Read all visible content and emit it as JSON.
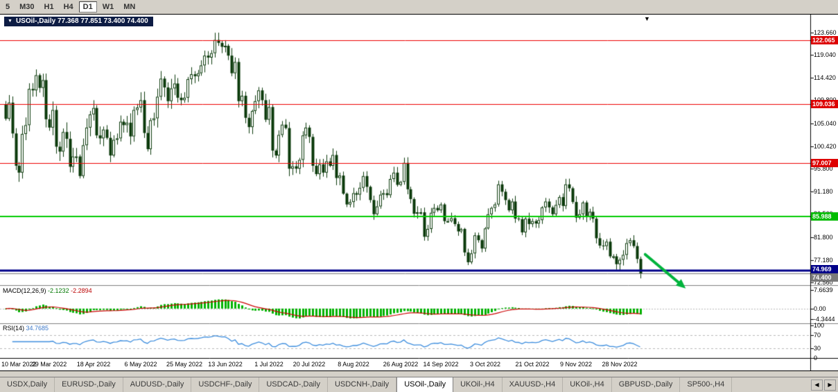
{
  "toolbar": {
    "timeframes": [
      {
        "label": "5",
        "active": false
      },
      {
        "label": "M30",
        "active": false
      },
      {
        "label": "H1",
        "active": false
      },
      {
        "label": "H4",
        "active": false
      },
      {
        "label": "D1",
        "active": true
      },
      {
        "label": "W1",
        "active": false
      },
      {
        "label": "MN",
        "active": false
      }
    ]
  },
  "chart": {
    "title_chip": "USOil-,Daily  77.368 77.851 73.400 74.400",
    "macd_name": "MACD(12,26,9)",
    "macd_main": "-2.1232",
    "macd_signal": "-2.2894",
    "rsi_name": "RSI(14)",
    "rsi_value": "34.7685",
    "price_ticks": [
      {
        "label": "123.660",
        "v": 123.66
      },
      {
        "label": "119.040",
        "v": 119.04
      },
      {
        "label": "114.420",
        "v": 114.42
      },
      {
        "label": "109.800",
        "v": 109.8
      },
      {
        "label": "105.040",
        "v": 105.04
      },
      {
        "label": "100.420",
        "v": 100.42
      },
      {
        "label": "95.800",
        "v": 95.8
      },
      {
        "label": "91.180",
        "v": 91.18
      },
      {
        "label": "86.560",
        "v": 86.56
      },
      {
        "label": "81.800",
        "v": 81.8
      },
      {
        "label": "77.180",
        "v": 77.18
      },
      {
        "label": "72.560",
        "v": 72.56
      }
    ],
    "price_tags": [
      {
        "label": "122.065",
        "v": 122.065,
        "bg": "#dd0000",
        "dy": 0
      },
      {
        "label": "109.036",
        "v": 109.036,
        "bg": "#dd0000",
        "dy": 0
      },
      {
        "label": "97.007",
        "v": 97.007,
        "bg": "#dd0000",
        "dy": 0
      },
      {
        "label": "85.988",
        "v": 85.988,
        "bg": "#00bb00",
        "dy": 0
      },
      {
        "label": "74.969",
        "v": 74.969,
        "bg": "#000089",
        "dy": -2
      },
      {
        "label": "74.400",
        "v": 74.4,
        "bg": "#7a7a7a",
        "dy": 6
      }
    ],
    "macd_ticks": [
      {
        "label": "7.6639",
        "v": 7.6639
      },
      {
        "label": "0.00",
        "v": 0.0
      },
      {
        "label": "-4.3444",
        "v": -4.3444
      }
    ],
    "rsi_ticks": [
      {
        "label": "100",
        "v": 100
      },
      {
        "label": "70",
        "v": 70
      },
      {
        "label": "30",
        "v": 30
      },
      {
        "label": "0",
        "v": 0
      }
    ],
    "date_labels": [
      {
        "label": "10 Mar 2022",
        "i": 0
      },
      {
        "label": "29 Mar 2022",
        "i": 13
      },
      {
        "label": "18 Apr 2022",
        "i": 26
      },
      {
        "label": "6 May 2022",
        "i": 40
      },
      {
        "label": "25 May 2022",
        "i": 53
      },
      {
        "label": "13 Jun 2022",
        "i": 65
      },
      {
        "label": "1 Jul 2022",
        "i": 78
      },
      {
        "label": "20 Jul 2022",
        "i": 90
      },
      {
        "label": "8 Aug 2022",
        "i": 103
      },
      {
        "label": "26 Aug 2022",
        "i": 117
      },
      {
        "label": "14 Sep 2022",
        "i": 129
      },
      {
        "label": "3 Oct 2022",
        "i": 142
      },
      {
        "label": "21 Oct 2022",
        "i": 156
      },
      {
        "label": "9 Nov 2022",
        "i": 169
      },
      {
        "label": "28 Nov 2022",
        "i": 182
      }
    ]
  },
  "chart_data": {
    "type": "candlestick",
    "symbol": "USOil-",
    "timeframe": "Daily",
    "ylim": [
      72.3,
      127.0
    ],
    "ohlc_last": {
      "open": 77.368,
      "high": 77.851,
      "low": 73.4,
      "close": 74.4
    },
    "closes": [
      106.0,
      109.3,
      103.0,
      96.4,
      95.0,
      102.9,
      104.7,
      112.1,
      111.8,
      114.9,
      112.3,
      113.9,
      105.9,
      104.2,
      107.8,
      100.3,
      99.3,
      103.3,
      101.9,
      96.2,
      98.3,
      98.3,
      94.3,
      100.6,
      104.2,
      106.9,
      108.2,
      102.6,
      102.0,
      103.8,
      102.1,
      98.5,
      101.7,
      102.0,
      105.4,
      104.7,
      105.2,
      102.4,
      107.8,
      108.3,
      109.8,
      103.1,
      99.8,
      105.7,
      106.1,
      110.5,
      114.2,
      112.4,
      109.6,
      112.2,
      113.2,
      110.3,
      109.8,
      110.3,
      114.1,
      115.1,
      114.7,
      115.3,
      116.9,
      118.9,
      118.5,
      119.4,
      122.1,
      121.5,
      120.7,
      120.9,
      118.9,
      115.3,
      117.6,
      109.6,
      110.7,
      106.2,
      104.3,
      107.6,
      109.6,
      111.8,
      109.8,
      105.8,
      108.4,
      99.5,
      98.5,
      102.7,
      104.8,
      104.1,
      95.8,
      96.3,
      95.8,
      97.6,
      102.6,
      104.2,
      102.3,
      96.4,
      94.7,
      96.7,
      95.0,
      97.3,
      96.4,
      98.6,
      93.9,
      94.4,
      90.7,
      88.5,
      89.0,
      90.8,
      90.5,
      91.9,
      94.3,
      92.1,
      89.4,
      86.5,
      88.1,
      90.5,
      90.8,
      90.4,
      93.7,
      95.0,
      92.5,
      93.1,
      97.0,
      91.6,
      89.6,
      86.6,
      86.9,
      86.9,
      81.9,
      83.5,
      86.8,
      87.8,
      87.3,
      88.5,
      85.1,
      85.1,
      85.7,
      84.5,
      83.0,
      83.5,
      78.7,
      76.7,
      78.5,
      82.2,
      81.2,
      79.5,
      83.6,
      86.5,
      87.8,
      88.5,
      92.6,
      91.1,
      89.4,
      87.3,
      89.1,
      85.6,
      85.5,
      82.8,
      85.6,
      84.5,
      85.1,
      84.6,
      85.3,
      87.9,
      89.1,
      87.9,
      86.5,
      88.4,
      90.0,
      88.2,
      92.6,
      91.8,
      89.0,
      85.8,
      86.5,
      88.9,
      85.9,
      87.0,
      85.6,
      81.6,
      80.1,
      80.0,
      80.9,
      77.9,
      77.9,
      76.3,
      77.2,
      78.2,
      80.6,
      81.2,
      80.0,
      77.368,
      74.4
    ],
    "hlines": [
      {
        "price": 122.065,
        "color": "#ee0000",
        "width": 1
      },
      {
        "price": 109.036,
        "color": "#ee0000",
        "width": 1
      },
      {
        "price": 97.007,
        "color": "#ee0000",
        "width": 1
      },
      {
        "price": 85.988,
        "color": "#00cc00",
        "width": 2
      },
      {
        "price": 74.969,
        "color": "#000089",
        "width": 3
      },
      {
        "price": 74.4,
        "color": "#777777",
        "width": 1
      }
    ],
    "indicators": [
      {
        "name": "MACD",
        "params": "12,26,9",
        "main": -2.1232,
        "signal": -2.2894,
        "range": [
          -4.3444,
          7.6639
        ],
        "hist_color": "#00b300",
        "signal_color": "#cc0000"
      },
      {
        "name": "RSI",
        "params": "14",
        "value": 34.7685,
        "levels": [
          30,
          70
        ],
        "line_color": "#3c8dde"
      }
    ],
    "annotation_arrow": {
      "color": "#00b33c",
      "from_candle": 189.5,
      "from_price": 78.3,
      "to_candle": 201.5,
      "to_price": 71.35
    },
    "colors": {
      "bull_fill": "#ffffff",
      "bear_fill": "#0b3a0b",
      "outline": "#0b3a0b",
      "grid_dash": "#b9b9b9",
      "frame": "#808080"
    }
  },
  "tabs": {
    "items": [
      {
        "label": "USDX,Daily",
        "active": false
      },
      {
        "label": "EURUSD-,Daily",
        "active": false
      },
      {
        "label": "AUDUSD-,Daily",
        "active": false
      },
      {
        "label": "USDCHF-,Daily",
        "active": false
      },
      {
        "label": "USDCAD-,Daily",
        "active": false
      },
      {
        "label": "USDCNH-,Daily",
        "active": false
      },
      {
        "label": "USOil-,Daily",
        "active": true
      },
      {
        "label": "UKOil-,H4",
        "active": false
      },
      {
        "label": "XAUUSD-,H4",
        "active": false
      },
      {
        "label": "UKOil-,H4",
        "active": false
      },
      {
        "label": "GBPUSD-,Daily",
        "active": false
      },
      {
        "label": "SP500-,H4",
        "active": false
      }
    ],
    "nav_left": "◀",
    "nav_right": "▶"
  }
}
